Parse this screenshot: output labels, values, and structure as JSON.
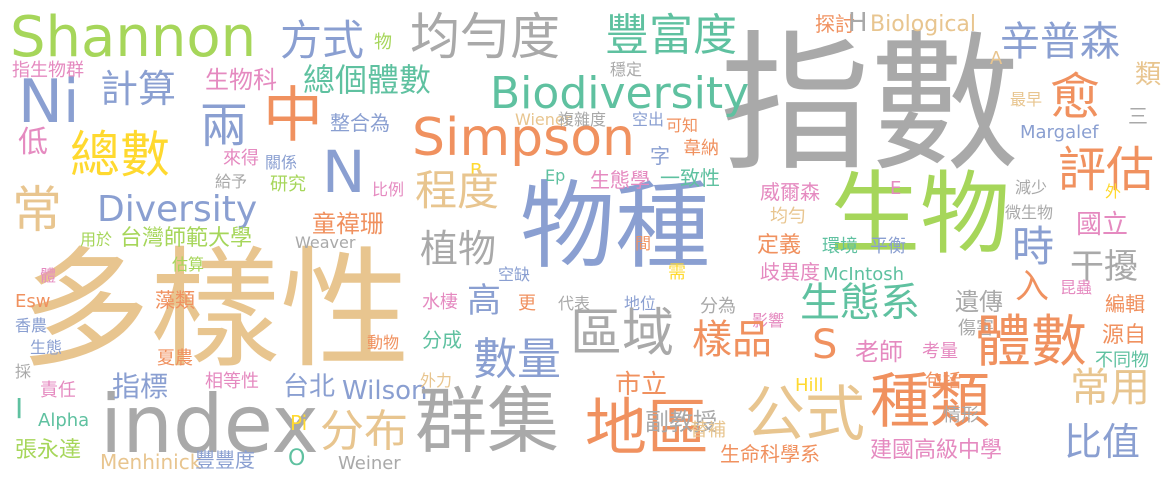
{
  "palette": {
    "gray": "#a9a9a9",
    "sand": "#e8c58f",
    "blue": "#8a9fd1",
    "orange": "#f0915f",
    "green": "#a6d65a",
    "teal": "#5fc1a0",
    "pink": "#e58ac0",
    "yellow": "#ffd92f"
  },
  "words": [
    {
      "text": "指數",
      "color": "gray"
    },
    {
      "text": "物種",
      "color": "blue"
    },
    {
      "text": "多樣性",
      "color": "sand"
    },
    {
      "text": "生物",
      "color": "green"
    },
    {
      "text": "index",
      "color": "gray"
    },
    {
      "text": "Shannon",
      "color": "green"
    },
    {
      "text": "均勻度",
      "color": "gray"
    },
    {
      "text": "豐富度",
      "color": "teal"
    },
    {
      "text": "辛普森",
      "color": "blue"
    },
    {
      "text": "方式",
      "color": "blue"
    },
    {
      "text": "物",
      "color": "green"
    },
    {
      "text": "探討",
      "color": "orange"
    },
    {
      "text": "H",
      "color": "gray"
    },
    {
      "text": "Biological",
      "color": "sand"
    },
    {
      "text": "指生物群",
      "color": "pink"
    },
    {
      "text": "穩定",
      "color": "gray"
    },
    {
      "text": "類",
      "color": "sand"
    },
    {
      "text": "A",
      "color": "sand"
    },
    {
      "text": "Ni",
      "color": "blue"
    },
    {
      "text": "計算",
      "color": "blue"
    },
    {
      "text": "生物科",
      "color": "pink"
    },
    {
      "text": "總個體數",
      "color": "teal"
    },
    {
      "text": "Biodiversity",
      "color": "teal"
    },
    {
      "text": "愈",
      "color": "orange"
    },
    {
      "text": "最早",
      "color": "sand"
    },
    {
      "text": "中",
      "color": "orange"
    },
    {
      "text": "兩",
      "color": "blue"
    },
    {
      "text": "整合為",
      "color": "blue"
    },
    {
      "text": "Simpson",
      "color": "orange"
    },
    {
      "text": "Wiener",
      "color": "sand"
    },
    {
      "text": "複雜度",
      "color": "gray"
    },
    {
      "text": "空出",
      "color": "blue"
    },
    {
      "text": "可知",
      "color": "orange"
    },
    {
      "text": "Margalef",
      "color": "blue"
    },
    {
      "text": "三",
      "color": "gray"
    },
    {
      "text": "低",
      "color": "pink"
    },
    {
      "text": "總數",
      "color": "yellow"
    },
    {
      "text": "來得",
      "color": "pink"
    },
    {
      "text": "關係",
      "color": "blue"
    },
    {
      "text": "字",
      "color": "blue"
    },
    {
      "text": "韋納",
      "color": "orange"
    },
    {
      "text": "N",
      "color": "blue"
    },
    {
      "text": "評估",
      "color": "orange"
    },
    {
      "text": "B",
      "color": "yellow"
    },
    {
      "text": "Ep",
      "color": "teal"
    },
    {
      "text": "生態學",
      "color": "pink"
    },
    {
      "text": "一致性",
      "color": "teal"
    },
    {
      "text": "給予",
      "color": "gray"
    },
    {
      "text": "研究",
      "color": "green"
    },
    {
      "text": "比例",
      "color": "pink"
    },
    {
      "text": "程度",
      "color": "sand"
    },
    {
      "text": "威爾森",
      "color": "pink"
    },
    {
      "text": "E",
      "color": "pink"
    },
    {
      "text": "減少",
      "color": "gray"
    },
    {
      "text": "外",
      "color": "yellow"
    },
    {
      "text": "常",
      "color": "sand"
    },
    {
      "text": "Diversity",
      "color": "blue"
    },
    {
      "text": "童禕珊",
      "color": "orange"
    },
    {
      "text": "均勻",
      "color": "sand"
    },
    {
      "text": "微生物",
      "color": "gray"
    },
    {
      "text": "國立",
      "color": "pink"
    },
    {
      "text": "用於",
      "color": "green"
    },
    {
      "text": "台灣師範大學",
      "color": "green"
    },
    {
      "text": "Weaver",
      "color": "gray"
    },
    {
      "text": "植物",
      "color": "gray"
    },
    {
      "text": "間",
      "color": "orange"
    },
    {
      "text": "定義",
      "color": "orange"
    },
    {
      "text": "環境",
      "color": "teal"
    },
    {
      "text": "平衡",
      "color": "blue"
    },
    {
      "text": "時",
      "color": "blue"
    },
    {
      "text": "估算",
      "color": "green"
    },
    {
      "text": "需",
      "color": "yellow"
    },
    {
      "text": "McIntosh",
      "color": "teal"
    },
    {
      "text": "干擾",
      "color": "gray"
    },
    {
      "text": "體",
      "color": "pink"
    },
    {
      "text": "空缺",
      "color": "blue"
    },
    {
      "text": "歧異度",
      "color": "pink"
    },
    {
      "text": "入",
      "color": "orange"
    },
    {
      "text": "昆蟲",
      "color": "pink"
    },
    {
      "text": "藻類",
      "color": "orange"
    },
    {
      "text": "Esw",
      "color": "orange"
    },
    {
      "text": "水棲",
      "color": "pink"
    },
    {
      "text": "更",
      "color": "orange"
    },
    {
      "text": "代表",
      "color": "gray"
    },
    {
      "text": "地位",
      "color": "blue"
    },
    {
      "text": "高",
      "color": "blue"
    },
    {
      "text": "生態系",
      "color": "teal"
    },
    {
      "text": "遺傳",
      "color": "gray"
    },
    {
      "text": "編輯",
      "color": "orange"
    },
    {
      "text": "香農",
      "color": "blue"
    },
    {
      "text": "分為",
      "color": "gray"
    },
    {
      "text": "區域",
      "color": "gray"
    },
    {
      "text": "影響",
      "color": "pink"
    },
    {
      "text": "傷害",
      "color": "gray"
    },
    {
      "text": "生態",
      "color": "blue"
    },
    {
      "text": "分成",
      "color": "teal"
    },
    {
      "text": "動物",
      "color": "orange"
    },
    {
      "text": "源自",
      "color": "orange"
    },
    {
      "text": "採",
      "color": "gray"
    },
    {
      "text": "數量",
      "color": "blue"
    },
    {
      "text": "樣品",
      "color": "orange"
    },
    {
      "text": "S",
      "color": "orange"
    },
    {
      "text": "老師",
      "color": "pink"
    },
    {
      "text": "考量",
      "color": "pink"
    },
    {
      "text": "體數",
      "color": "orange"
    },
    {
      "text": "不同物",
      "color": "teal"
    },
    {
      "text": "夏農",
      "color": "orange"
    },
    {
      "text": "指標",
      "color": "blue"
    },
    {
      "text": "相等性",
      "color": "pink"
    },
    {
      "text": "台北",
      "color": "blue"
    },
    {
      "text": "Wilson",
      "color": "blue"
    },
    {
      "text": "外力",
      "color": "sand"
    },
    {
      "text": "市立",
      "color": "orange"
    },
    {
      "text": "Hill",
      "color": "yellow"
    },
    {
      "text": "包括",
      "color": "orange"
    },
    {
      "text": "常用",
      "color": "sand"
    },
    {
      "text": "責任",
      "color": "pink"
    },
    {
      "text": "I",
      "color": "teal"
    },
    {
      "text": "Alpha",
      "color": "teal"
    },
    {
      "text": "Pi",
      "color": "yellow"
    },
    {
      "text": "分布",
      "color": "sand"
    },
    {
      "text": "群集",
      "color": "gray"
    },
    {
      "text": "地區",
      "color": "orange"
    },
    {
      "text": "公式",
      "color": "sand"
    },
    {
      "text": "種類",
      "color": "orange"
    },
    {
      "text": "副教授",
      "color": "gray"
    },
    {
      "text": "情形",
      "color": "gray"
    },
    {
      "text": "比值",
      "color": "blue"
    },
    {
      "text": "替補",
      "color": "sand"
    },
    {
      "text": "張永達",
      "color": "green"
    },
    {
      "text": "Menhinick",
      "color": "sand"
    },
    {
      "text": "豐豐度",
      "color": "blue"
    },
    {
      "text": "O",
      "color": "teal"
    },
    {
      "text": "Weiner",
      "color": "gray"
    },
    {
      "text": "生命科學系",
      "color": "orange"
    },
    {
      "text": "建國高級中學",
      "color": "pink"
    }
  ]
}
